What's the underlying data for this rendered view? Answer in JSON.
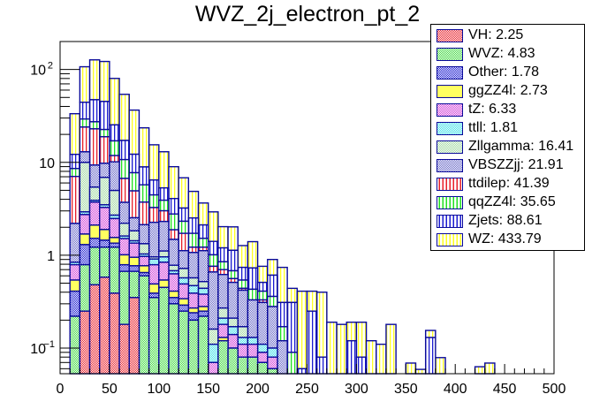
{
  "chart_data": {
    "type": "bar",
    "subtype": "stacked-histogram",
    "title": "WVZ_2j_electron_pt_2",
    "xlabel": "",
    "ylabel": "",
    "xlim": [
      0,
      500
    ],
    "ylim": [
      0.053,
      200
    ],
    "yscale": "log",
    "bin_width": 10,
    "x_ticks": [
      "0",
      "50",
      "100",
      "150",
      "200",
      "250",
      "300",
      "350",
      "400",
      "450",
      "500"
    ],
    "x_tick_values": [
      0,
      50,
      100,
      150,
      200,
      250,
      300,
      350,
      400,
      450,
      500
    ],
    "y_ticks": [
      "10^-1",
      "1",
      "10",
      "10^2"
    ],
    "y_tick_values": [
      0.1,
      1,
      10,
      100
    ],
    "legend_position": "top-right",
    "grid": false,
    "series": [
      {
        "name": "VH",
        "label": "VH: 2.25",
        "pattern": "crosshatch",
        "color": "#e8202a",
        "values": [
          0,
          0,
          0.25,
          0.48,
          0.58,
          0.39,
          0.18,
          0.35,
          0,
          0,
          0,
          0,
          0,
          0,
          0,
          0,
          0,
          0,
          0,
          0,
          0,
          0,
          0,
          0,
          0,
          0,
          0,
          0,
          0,
          0,
          0,
          0,
          0,
          0,
          0,
          0,
          0,
          0,
          0,
          0,
          0,
          0,
          0,
          0,
          0,
          0,
          0,
          0,
          0,
          0
        ]
      },
      {
        "name": "WVZ",
        "label": "WVZ: 4.83",
        "pattern": "crosshatch",
        "color": "#3ed83e",
        "values": [
          0,
          0.22,
          0.54,
          0.74,
          0.64,
          0.83,
          0.49,
          0.32,
          0.6,
          0.35,
          0.45,
          0.3,
          0.25,
          0.2,
          0.22,
          0,
          0.12,
          0.1,
          0.08,
          0.08,
          0.07,
          0.06,
          0,
          0,
          0,
          0,
          0,
          0,
          0,
          0,
          0,
          0,
          0,
          0,
          0,
          0,
          0,
          0,
          0,
          0,
          0,
          0,
          0,
          0,
          0,
          0,
          0,
          0,
          0,
          0
        ]
      },
      {
        "name": "Other",
        "label": "Other: 1.78",
        "pattern": "crosshatch",
        "color": "#1a1ad0",
        "values": [
          0,
          0.19,
          0.51,
          0.3,
          0.23,
          0.13,
          0.12,
          0.1,
          0.05,
          0.04,
          0,
          0.05,
          0.04,
          0.04,
          0.03,
          0,
          0,
          0,
          0,
          0,
          0,
          0,
          0,
          0,
          0,
          0,
          0,
          0,
          0,
          0,
          0,
          0,
          0,
          0,
          0,
          0,
          0,
          0,
          0,
          0,
          0,
          0,
          0,
          0,
          0,
          0,
          0,
          0,
          0,
          0
        ]
      },
      {
        "name": "ggZZ4l",
        "label": "ggZZ4l: 2.73",
        "pattern": "solid",
        "color": "#ffff60",
        "values": [
          0,
          0.13,
          0.39,
          0.59,
          0.44,
          0.2,
          0.22,
          0.18,
          0.12,
          0.1,
          0.09,
          0.06,
          0.05,
          0.03,
          0.03,
          0.01,
          0.01,
          0,
          0,
          0,
          0,
          0,
          0,
          0,
          0,
          0,
          0,
          0,
          0,
          0,
          0,
          0,
          0,
          0,
          0,
          0,
          0,
          0,
          0,
          0,
          0,
          0,
          0,
          0,
          0,
          0,
          0,
          0,
          0,
          0
        ]
      },
      {
        "name": "tZ",
        "label": "tZ: 6.33",
        "pattern": "crosshatch",
        "color": "#d040d8",
        "values": [
          0,
          0.25,
          1.05,
          1.62,
          1.38,
          0.93,
          0.5,
          0.4,
          0.2,
          0.3,
          0.3,
          0.22,
          0.15,
          0.12,
          0.1,
          0.06,
          0.05,
          0.04,
          0.03,
          0.03,
          0.02,
          0.02,
          0,
          0,
          0,
          0,
          0,
          0,
          0,
          0,
          0,
          0,
          0,
          0,
          0,
          0,
          0,
          0,
          0,
          0,
          0,
          0,
          0,
          0,
          0,
          0,
          0,
          0,
          0,
          0
        ]
      },
      {
        "name": "ttll",
        "label": "ttll: 1.81",
        "pattern": "crosshatch",
        "color": "#40e0e8",
        "values": [
          0,
          0.05,
          0.19,
          0.17,
          0.22,
          0.22,
          0.1,
          0.08,
          0.06,
          0.12,
          0.12,
          0.05,
          0.08,
          0.08,
          0.06,
          0.04,
          0.03,
          0.03,
          0.02,
          0.02,
          0.02,
          0.02,
          0,
          0,
          0,
          0,
          0,
          0,
          0,
          0,
          0,
          0,
          0,
          0,
          0,
          0,
          0,
          0,
          0,
          0,
          0,
          0,
          0,
          0,
          0,
          0,
          0,
          0,
          0,
          0
        ]
      },
      {
        "name": "Zllgamma",
        "label": "Zllgamma: 16.41",
        "pattern": "crosshatch",
        "color": "#a0d8a0",
        "values": [
          0,
          0,
          7.06,
          1.51,
          3.4,
          2.28,
          0.6,
          0.4,
          0.3,
          0.05,
          0.15,
          0.1,
          0.15,
          0.1,
          0.08,
          0.05,
          0.06,
          0.04,
          0.04,
          0,
          0,
          0,
          0,
          0,
          0,
          0,
          0,
          0,
          0,
          0,
          0,
          0,
          0,
          0,
          0,
          0,
          0,
          0,
          0,
          0,
          0,
          0,
          0,
          0,
          0,
          0,
          0,
          0,
          0,
          0
        ]
      },
      {
        "name": "VBSZZjj",
        "label": "VBSZZjj: 21.91",
        "pattern": "crosshatch",
        "color": "#6a6ac8",
        "values": [
          0,
          1.36,
          3.0,
          3.94,
          2.88,
          5.15,
          1.5,
          0.7,
          0.8,
          1.3,
          1.2,
          0.7,
          0.4,
          0.5,
          0.6,
          0.5,
          0.35,
          0.3,
          0.25,
          0.2,
          0.2,
          0.18,
          0.12,
          0.05,
          0,
          0,
          0,
          0,
          0,
          0,
          0,
          0,
          0,
          0,
          0,
          0,
          0,
          0,
          0,
          0,
          0,
          0,
          0,
          0,
          0,
          0,
          0,
          0,
          0,
          0
        ]
      },
      {
        "name": "ttdilep",
        "label": "ttdilep: 41.39",
        "pattern": "vertical",
        "color": "#e8202a",
        "values": [
          0,
          4.85,
          11.0,
          13.6,
          9.1,
          1.7,
          3.0,
          2.4,
          1.6,
          1.0,
          0.7,
          0.4,
          0.6,
          0.15,
          0.1,
          0.1,
          0.08,
          0.05,
          0.02,
          0,
          0.02,
          0,
          0,
          0,
          0,
          0,
          0,
          0,
          0,
          0,
          0,
          0,
          0,
          0,
          0,
          0,
          0,
          0,
          0,
          0,
          0,
          0,
          0,
          0,
          0,
          0,
          0,
          0,
          0,
          0
        ]
      },
      {
        "name": "qqZZ4l",
        "label": "qqZZ4l: 35.65",
        "pattern": "vertical",
        "color": "#20e020",
        "values": [
          0,
          1.53,
          5.3,
          4.4,
          3.7,
          5.2,
          4.0,
          2.8,
          2.0,
          1.2,
          0.9,
          0.9,
          0.6,
          0.5,
          0.3,
          0.25,
          0.15,
          0.12,
          0.1,
          0.1,
          0.08,
          0.08,
          0.05,
          0.04,
          0,
          0,
          0,
          0,
          0,
          0,
          0.03,
          0,
          0,
          0,
          0,
          0,
          0,
          0,
          0,
          0,
          0,
          0,
          0,
          0,
          0,
          0,
          0,
          0,
          0,
          0
        ]
      },
      {
        "name": "Zjets",
        "label": "Zjets: 88.61",
        "pattern": "vertical",
        "color": "#1a1ad0",
        "values": [
          0,
          3.62,
          15.1,
          19.9,
          22.7,
          8.3,
          6.5,
          4.5,
          3.2,
          2.0,
          1.4,
          1.3,
          0.9,
          0.8,
          0.6,
          0.4,
          0.35,
          0.45,
          0.2,
          0.3,
          0.1,
          0.25,
          0.14,
          0.22,
          0.06,
          0.25,
          0.08,
          0.05,
          0.04,
          0.12,
          0.05,
          0,
          0,
          0.05,
          0,
          0,
          0,
          0.13,
          0.03,
          0,
          0,
          0,
          0,
          0,
          0,
          0,
          0,
          0,
          0,
          0
        ]
      },
      {
        "name": "WZ",
        "label": "WZ: 433.79",
        "pattern": "vertical",
        "color": "#ffff20",
        "values": [
          0,
          21.2,
          62.6,
          79.7,
          76.7,
          54.8,
          36.8,
          24.3,
          14.6,
          9.0,
          7.7,
          4.9,
          3.6,
          2.35,
          1.53,
          1.52,
          0.83,
          0.89,
          0.53,
          0.67,
          0.25,
          0.29,
          0.43,
          0.13,
          0.35,
          0.16,
          0.32,
          0.14,
          0.14,
          0.07,
          0.11,
          0.12,
          0.11,
          0.13,
          0,
          0.069,
          0.059,
          0.025,
          0.049,
          0,
          0,
          0,
          0.063,
          0.069,
          0,
          0,
          0,
          0,
          0,
          0
        ]
      }
    ]
  }
}
